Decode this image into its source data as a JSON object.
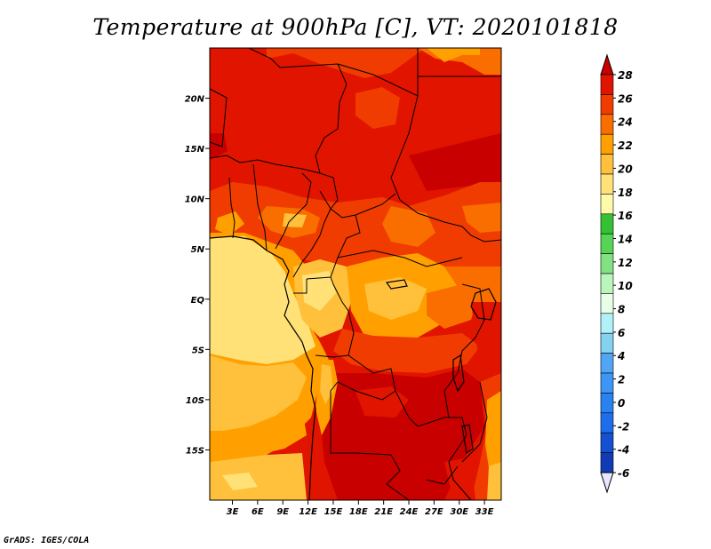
{
  "title": "Temperature at 900hPa [C], VT: 2020101818",
  "credit": "GrADS: IGES/COLA",
  "map": {
    "lat_labels": [
      {
        "label": "20N",
        "lat": 20
      },
      {
        "label": "15N",
        "lat": 15
      },
      {
        "label": "10N",
        "lat": 10
      },
      {
        "label": "5N",
        "lat": 5
      },
      {
        "label": "EQ",
        "lat": 0
      },
      {
        "label": "5S",
        "lat": -5
      },
      {
        "label": "10S",
        "lat": -10
      },
      {
        "label": "15S",
        "lat": -15
      }
    ],
    "lon_labels": [
      {
        "label": "3E",
        "lon": 3
      },
      {
        "label": "6E",
        "lon": 6
      },
      {
        "label": "9E",
        "lon": 9
      },
      {
        "label": "12E",
        "lon": 12
      },
      {
        "label": "15E",
        "lon": 15
      },
      {
        "label": "18E",
        "lon": 18
      },
      {
        "label": "21E",
        "lon": 21
      },
      {
        "label": "24E",
        "lon": 24
      },
      {
        "label": "27E",
        "lon": 27
      },
      {
        "label": "30E",
        "lon": 30
      },
      {
        "label": "33E",
        "lon": 33
      }
    ],
    "lon_range": [
      0.3,
      35
    ],
    "lat_range": [
      -20,
      25
    ]
  },
  "colorbar": {
    "labels": [
      "28",
      "26",
      "24",
      "22",
      "20",
      "18",
      "16",
      "14",
      "12",
      "10",
      "8",
      "6",
      "4",
      "2",
      "0",
      "-2",
      "-4",
      "-6"
    ],
    "colors": [
      "#c80000",
      "#e11400",
      "#f03c00",
      "#fa6e00",
      "#ffa000",
      "#ffc03c",
      "#ffe178",
      "#fffaaa",
      "#34c134",
      "#56d456",
      "#82e182",
      "#bcf5bc",
      "#e6ffe6",
      "#b4f0fa",
      "#82d2f0",
      "#50a5f5",
      "#3c96f5",
      "#2882f0",
      "#1e6eeb",
      "#1450d2",
      "#0f3cb4",
      "#000080"
    ]
  }
}
